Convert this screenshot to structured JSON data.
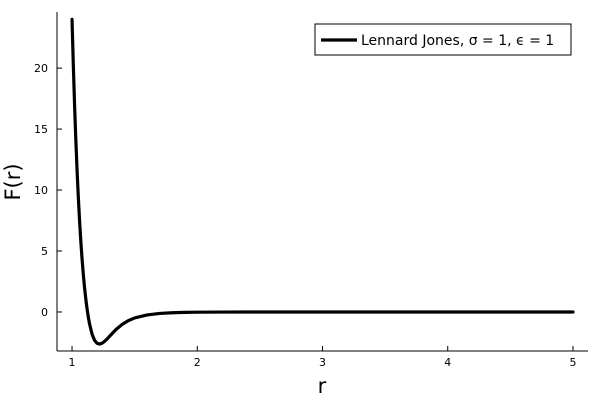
{
  "chart_data": {
    "type": "line",
    "title": "",
    "xlabel": "r",
    "ylabel": "F(r)",
    "xlim": [
      0.88,
      5.12
    ],
    "ylim": [
      -3.2,
      24.6
    ],
    "x_ticks": [
      {
        "value": 1,
        "label": "1"
      },
      {
        "value": 2,
        "label": "2"
      },
      {
        "value": 3,
        "label": "3"
      },
      {
        "value": 4,
        "label": "4"
      },
      {
        "value": 5,
        "label": "5"
      }
    ],
    "y_ticks": [
      {
        "value": 0,
        "label": "0"
      },
      {
        "value": 5,
        "label": "5"
      },
      {
        "value": 10,
        "label": "10"
      },
      {
        "value": 15,
        "label": "15"
      },
      {
        "value": 20,
        "label": "20"
      }
    ],
    "grid": false,
    "legend_position": "top-right",
    "series": [
      {
        "name": "Lennard Jones, σ = 1, ϵ = 1",
        "color": "#000000",
        "x": [
          1.0,
          1.01,
          1.02,
          1.03,
          1.04,
          1.05,
          1.06,
          1.07,
          1.08,
          1.09,
          1.1,
          1.11,
          1.12,
          1.13,
          1.14,
          1.16,
          1.18,
          1.2,
          1.22,
          1.24,
          1.26,
          1.28,
          1.3,
          1.35,
          1.4,
          1.45,
          1.5,
          1.6,
          1.7,
          1.8,
          1.9,
          2.0,
          2.2,
          2.4,
          2.6,
          2.8,
          3.0,
          3.5,
          4.0,
          4.5,
          5.0
        ],
        "y": [
          24.0,
          20.33,
          17.07,
          14.2,
          11.67,
          9.45,
          7.52,
          5.83,
          4.36,
          3.09,
          2.0,
          1.06,
          0.26,
          -0.42,
          -0.98,
          -1.83,
          -2.33,
          -2.57,
          -2.63,
          -2.56,
          -2.41,
          -2.21,
          -1.99,
          -1.45,
          -1.02,
          -0.71,
          -0.49,
          -0.24,
          -0.12,
          -0.062,
          -0.034,
          -0.0186,
          -0.0066,
          -0.0027,
          -0.0012,
          -0.0006,
          -0.0003,
          -0.0001,
          0.0,
          0.0,
          0.0
        ]
      }
    ]
  }
}
